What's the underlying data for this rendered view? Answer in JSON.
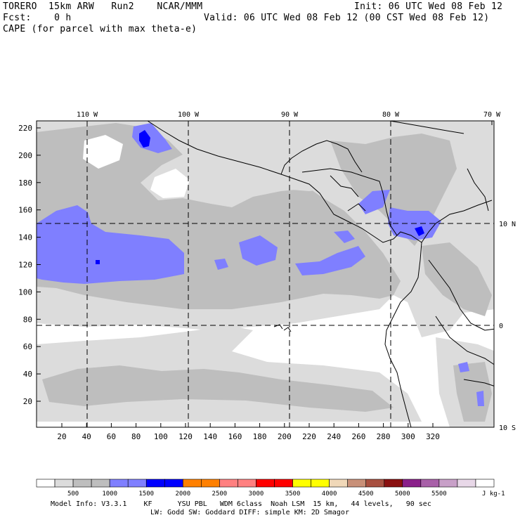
{
  "header": {
    "model": "TORERO  15km ARW   Run2    NCAR/MMM",
    "init": "Init: 06 UTC Wed 08 Feb 12",
    "fcst": "Fcst:    0 h",
    "valid": "Valid: 06 UTC Wed 08 Feb 12 (00 CST Wed 08 Feb 12)",
    "field": "CAPE (for parcel with max theta-e)"
  },
  "map": {
    "top_labels": [
      "110 W",
      "100 W",
      "90 W",
      "80 W",
      "70 W"
    ],
    "right_labels": [
      "10 N",
      "0",
      "10 S"
    ],
    "left_ticks": [
      "220",
      "200",
      "180",
      "160",
      "140",
      "120",
      "100",
      "80",
      "60",
      "40",
      "20"
    ],
    "bottom_ticks": [
      "20",
      "40",
      "60",
      "80",
      "100",
      "120",
      "140",
      "160",
      "180",
      "200",
      "220",
      "240",
      "260",
      "280",
      "300",
      "320"
    ]
  },
  "colorbar": {
    "labels": [
      "500",
      "1000",
      "1500",
      "2000",
      "2500",
      "3000",
      "3500",
      "4000",
      "4500",
      "5000",
      "5500"
    ],
    "units": "J kg-1",
    "colors": [
      "#ffffff",
      "#dcdcdc",
      "#bebebe",
      "#bebebe",
      "#7f7fff",
      "#7f7fff",
      "#0000ff",
      "#0000ff",
      "#ff8000",
      "#ff8000",
      "#ff8080",
      "#ff8080",
      "#ff0000",
      "#ff0000",
      "#ffff00",
      "#ffff00",
      "#f0d8b8",
      "#c89078",
      "#a85040",
      "#8a1010",
      "#8a208a",
      "#a860a8",
      "#c8a0c8",
      "#e8d8e8",
      "#ffffff"
    ]
  },
  "footer": {
    "line1": "Model Info: V3.3.1    KF      YSU PBL   WDM 6class  Noah LSM  15 km,   44 levels,   90 sec",
    "line2": "LW: Godd SW: Goddard DIFF: simple KM: 2D Smagor"
  },
  "style": {
    "light_gray": "#dcdcdc",
    "mid_gray": "#bebebe",
    "light_blue": "#7f7fff",
    "blue": "#0000ff"
  }
}
